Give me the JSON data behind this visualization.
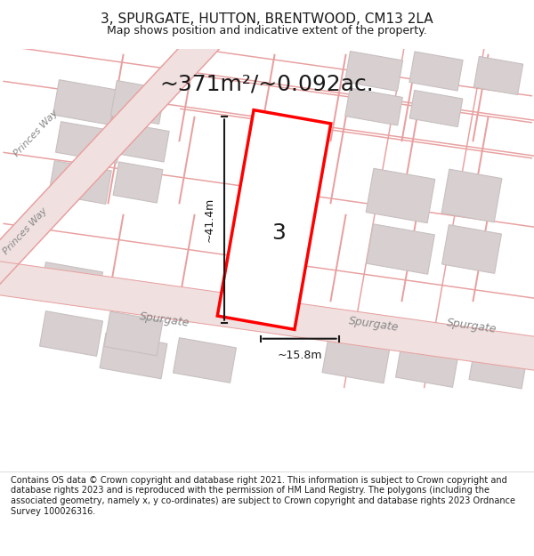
{
  "title": "3, SPURGATE, HUTTON, BRENTWOOD, CM13 2LA",
  "subtitle": "Map shows position and indicative extent of the property.",
  "area_text": "~371m²/~0.092ac.",
  "dim_width": "~15.8m",
  "dim_height": "~41.4m",
  "plot_number": "3",
  "footer": "Contains OS data © Crown copyright and database right 2021. This information is subject to Crown copyright and database rights 2023 and is reproduced with the permission of HM Land Registry. The polygons (including the associated geometry, namely x, y co-ordinates) are subject to Crown copyright and database rights 2023 Ordnance Survey 100026316.",
  "bg_color": "#f5f5f5",
  "map_bg": "#f0eeee",
  "road_color": "#f8c8c8",
  "road_line_color": "#e8a0a0",
  "building_color": "#d8d0d0",
  "building_edge": "#c8c0c0",
  "plot_fill": "#ffffff",
  "plot_edge": "#ff0000",
  "dim_line_color": "#1a1a1a",
  "text_color": "#1a1a1a",
  "street_label_color": "#888888",
  "title_fontsize": 11,
  "subtitle_fontsize": 9,
  "area_fontsize": 18,
  "dim_fontsize": 9,
  "number_fontsize": 18,
  "footer_fontsize": 7
}
